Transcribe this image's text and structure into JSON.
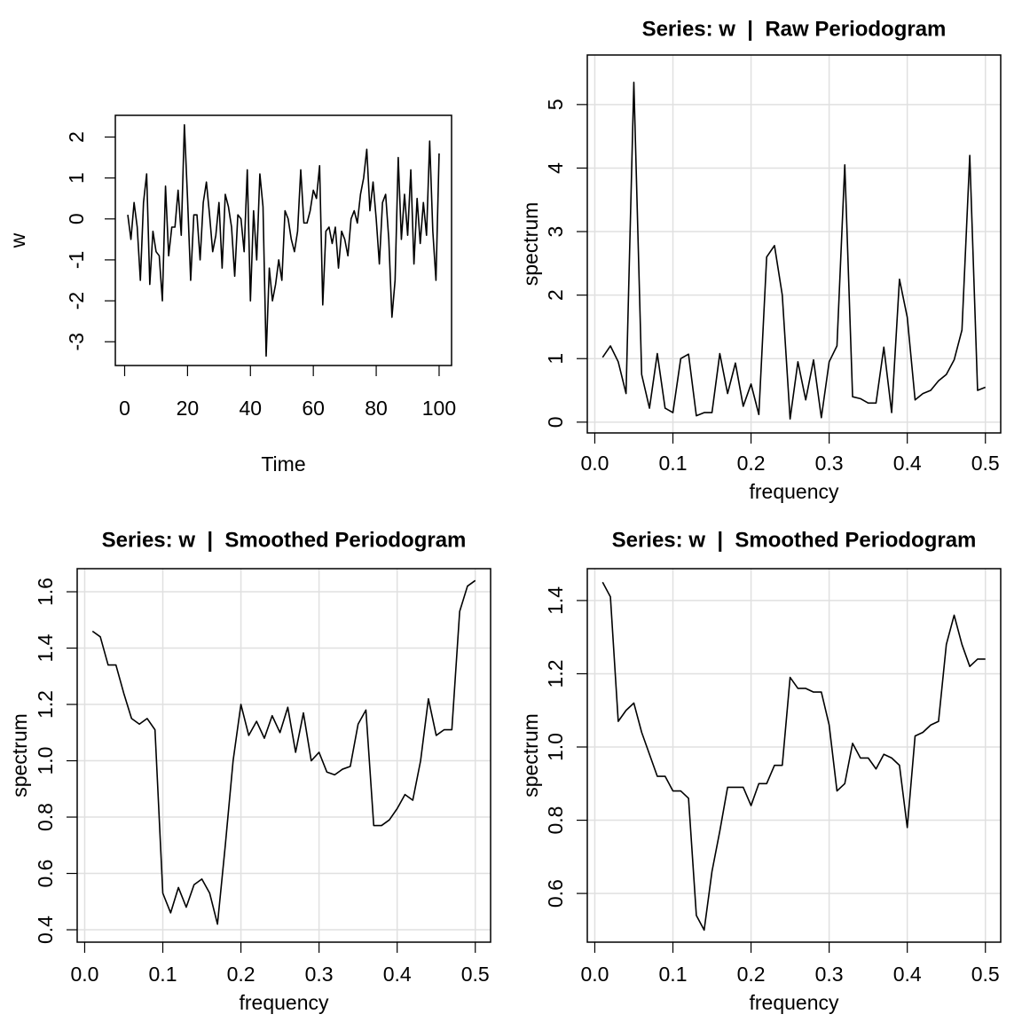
{
  "chart_data": [
    {
      "type": "line",
      "xlabel": "Time",
      "ylabel": "w",
      "x": [
        1,
        2,
        3,
        4,
        5,
        6,
        7,
        8,
        9,
        10,
        11,
        12,
        13,
        14,
        15,
        16,
        17,
        18,
        19,
        20,
        21,
        22,
        23,
        24,
        25,
        26,
        27,
        28,
        29,
        30,
        31,
        32,
        33,
        34,
        35,
        36,
        37,
        38,
        39,
        40,
        41,
        42,
        43,
        44,
        45,
        46,
        47,
        48,
        49,
        50,
        51,
        52,
        53,
        54,
        55,
        56,
        57,
        58,
        59,
        60,
        61,
        62,
        63,
        64,
        65,
        66,
        67,
        68,
        69,
        70,
        71,
        72,
        73,
        74,
        75,
        76,
        77,
        78,
        79,
        80,
        81,
        82,
        83,
        84,
        85,
        86,
        87,
        88,
        89,
        90,
        91,
        92,
        93,
        94,
        95,
        96,
        97,
        98,
        99,
        100
      ],
      "values": [
        0.1,
        -0.5,
        0.4,
        -0.2,
        -1.5,
        0.4,
        1.1,
        -1.6,
        -0.3,
        -0.8,
        -0.9,
        -2.0,
        0.8,
        -0.9,
        -0.2,
        -0.2,
        0.7,
        -0.4,
        2.3,
        0.5,
        -1.5,
        0.1,
        0.1,
        -1.0,
        0.4,
        0.9,
        0.1,
        -0.8,
        -0.4,
        0.4,
        -1.2,
        0.6,
        0.3,
        -0.2,
        -1.4,
        0.1,
        0.0,
        -0.8,
        1.2,
        -2.0,
        0.2,
        -1.0,
        1.1,
        0.3,
        -3.35,
        -1.2,
        -2.0,
        -1.6,
        -1.0,
        -1.5,
        0.2,
        0.0,
        -0.5,
        -0.8,
        -0.3,
        1.2,
        -0.1,
        -0.1,
        0.2,
        0.7,
        0.5,
        1.3,
        -2.1,
        -0.3,
        -0.2,
        -0.6,
        -0.2,
        -1.2,
        -0.3,
        -0.5,
        -0.9,
        0.0,
        0.2,
        -0.1,
        0.6,
        1.0,
        1.7,
        0.2,
        0.9,
        0.0,
        -1.1,
        0.4,
        0.6,
        -0.5,
        -2.4,
        -1.5,
        1.5,
        -0.5,
        0.6,
        -0.4,
        1.2,
        -1.1,
        0.5,
        -0.6,
        0.4,
        -0.4,
        1.9,
        -0.3,
        -1.5,
        1.6
      ],
      "color": "#000000",
      "xlim": [
        -2.96,
        103.96
      ],
      "ylim": [
        -3.58,
        2.53
      ],
      "xticks": [
        0,
        20,
        40,
        60,
        80,
        100
      ],
      "yticks": [
        -3,
        -2,
        -1,
        0,
        1,
        2
      ],
      "grid": false
    },
    {
      "type": "line",
      "title": "Series: w  |  Raw Periodogram",
      "xlabel": "frequency",
      "ylabel": "spectrum",
      "x": [
        0.01,
        0.02,
        0.03,
        0.04,
        0.05,
        0.06,
        0.07,
        0.08,
        0.09,
        0.1,
        0.11,
        0.12,
        0.13,
        0.14,
        0.15,
        0.16,
        0.17,
        0.18,
        0.19,
        0.2,
        0.21,
        0.22,
        0.23,
        0.24,
        0.25,
        0.26,
        0.27,
        0.28,
        0.29,
        0.3,
        0.31,
        0.32,
        0.33,
        0.34,
        0.35,
        0.36,
        0.37,
        0.38,
        0.39,
        0.4,
        0.41,
        0.42,
        0.43,
        0.44,
        0.45,
        0.46,
        0.47,
        0.48,
        0.49,
        0.5
      ],
      "values": [
        1.02,
        1.2,
        0.95,
        0.45,
        5.35,
        0.75,
        0.22,
        1.08,
        0.22,
        0.15,
        1.0,
        1.07,
        0.1,
        0.15,
        0.15,
        1.08,
        0.45,
        0.93,
        0.25,
        0.6,
        0.12,
        2.6,
        2.78,
        2.0,
        0.05,
        0.95,
        0.35,
        0.98,
        0.07,
        0.95,
        1.2,
        4.05,
        0.4,
        0.37,
        0.3,
        0.3,
        1.18,
        0.15,
        2.25,
        1.65,
        0.35,
        0.45,
        0.5,
        0.65,
        0.75,
        0.98,
        1.45,
        4.2,
        0.5,
        0.55
      ],
      "color": "#000000",
      "xlim": [
        -0.0096,
        0.5196
      ],
      "ylim": [
        -0.17,
        5.78
      ],
      "xticks": [
        {
          "value": 0,
          "label": "0.0"
        },
        0.1,
        0.2,
        0.3,
        0.4,
        0.5
      ],
      "yticks": [
        0,
        1,
        2,
        3,
        4,
        5
      ],
      "grid": true
    },
    {
      "type": "line",
      "title": "Series: w  |  Smoothed Periodogram",
      "xlabel": "frequency",
      "ylabel": "spectrum",
      "x": [
        0.01,
        0.02,
        0.03,
        0.04,
        0.05,
        0.06,
        0.07,
        0.08,
        0.09,
        0.1,
        0.11,
        0.12,
        0.13,
        0.14,
        0.15,
        0.16,
        0.17,
        0.18,
        0.19,
        0.2,
        0.21,
        0.22,
        0.23,
        0.24,
        0.25,
        0.26,
        0.27,
        0.28,
        0.29,
        0.3,
        0.31,
        0.32,
        0.33,
        0.34,
        0.35,
        0.36,
        0.37,
        0.38,
        0.39,
        0.4,
        0.41,
        0.42,
        0.43,
        0.44,
        0.45,
        0.46,
        0.47,
        0.48,
        0.49,
        0.5
      ],
      "values": [
        1.46,
        1.44,
        1.34,
        1.34,
        1.24,
        1.15,
        1.13,
        1.15,
        1.11,
        0.53,
        0.46,
        0.55,
        0.48,
        0.56,
        0.58,
        0.53,
        0.42,
        0.7,
        1.0,
        1.2,
        1.09,
        1.14,
        1.08,
        1.16,
        1.1,
        1.19,
        1.03,
        1.17,
        1.0,
        1.03,
        0.96,
        0.95,
        0.97,
        0.98,
        1.13,
        1.18,
        0.77,
        0.77,
        0.79,
        0.83,
        0.88,
        0.86,
        1.0,
        1.22,
        1.09,
        1.11,
        1.11,
        1.53,
        1.62,
        1.64
      ],
      "color": "#000000",
      "xlim": [
        -0.0096,
        0.5196
      ],
      "ylim": [
        0.356,
        1.682
      ],
      "xticks": [
        {
          "value": 0,
          "label": "0.0"
        },
        0.1,
        0.2,
        0.3,
        0.4,
        0.5
      ],
      "yticks": [
        0.4,
        0.6,
        0.8,
        {
          "value": 1,
          "label": "1.0"
        },
        1.2,
        1.4,
        1.6
      ],
      "grid": true
    },
    {
      "type": "line",
      "title": "Series: w  |  Smoothed Periodogram",
      "xlabel": "frequency",
      "ylabel": "spectrum",
      "x": [
        0.01,
        0.02,
        0.03,
        0.04,
        0.05,
        0.06,
        0.07,
        0.08,
        0.09,
        0.1,
        0.11,
        0.12,
        0.13,
        0.14,
        0.15,
        0.16,
        0.17,
        0.18,
        0.19,
        0.2,
        0.21,
        0.22,
        0.23,
        0.24,
        0.25,
        0.26,
        0.27,
        0.28,
        0.29,
        0.3,
        0.31,
        0.32,
        0.33,
        0.34,
        0.35,
        0.36,
        0.37,
        0.38,
        0.39,
        0.4,
        0.41,
        0.42,
        0.43,
        0.44,
        0.45,
        0.46,
        0.47,
        0.48,
        0.49,
        0.5
      ],
      "values": [
        1.45,
        1.41,
        1.07,
        1.1,
        1.12,
        1.04,
        0.98,
        0.92,
        0.92,
        0.88,
        0.88,
        0.86,
        0.54,
        0.5,
        0.66,
        0.77,
        0.89,
        0.89,
        0.89,
        0.84,
        0.9,
        0.9,
        0.95,
        0.95,
        1.19,
        1.16,
        1.16,
        1.15,
        1.15,
        1.06,
        0.88,
        0.9,
        1.01,
        0.97,
        0.97,
        0.94,
        0.98,
        0.97,
        0.95,
        0.78,
        1.03,
        1.04,
        1.06,
        1.07,
        1.28,
        1.36,
        1.28,
        1.22,
        1.24,
        1.24
      ],
      "color": "#000000",
      "xlim": [
        -0.0096,
        0.5196
      ],
      "ylim": [
        0.467,
        1.487
      ],
      "xticks": [
        {
          "value": 0,
          "label": "0.0"
        },
        0.1,
        0.2,
        0.3,
        0.4,
        0.5
      ],
      "yticks": [
        0.6,
        0.8,
        {
          "value": 1,
          "label": "1.0"
        },
        1.2,
        1.4
      ],
      "grid": true
    }
  ]
}
